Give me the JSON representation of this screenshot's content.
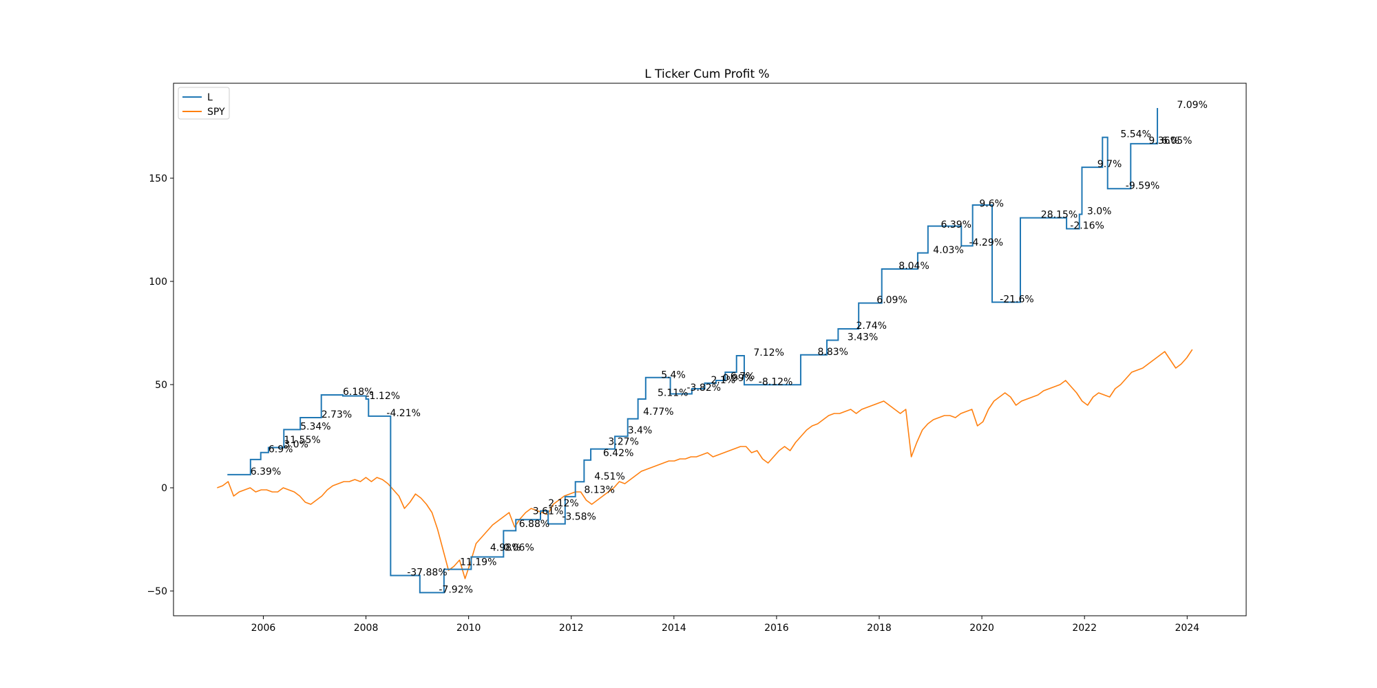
{
  "chart_data": {
    "type": "line",
    "title": "L Ticker Cum Profit %",
    "xlabel": "",
    "ylabel": "",
    "xlim": [
      2004.25,
      2025.15
    ],
    "ylim": [
      -62,
      196
    ],
    "x_ticks": [
      2006,
      2008,
      2010,
      2012,
      2014,
      2016,
      2018,
      2020,
      2022,
      2024
    ],
    "y_ticks": [
      -50,
      0,
      50,
      100,
      150
    ],
    "grid": false,
    "legend_position": "upper-left",
    "colors": {
      "L": "#1f77b4",
      "SPY": "#ff7f0e"
    },
    "series": [
      {
        "name": "L",
        "style": "step",
        "points": [
          [
            2005.3,
            6.39
          ],
          [
            2005.75,
            6.39
          ],
          [
            2005.75,
            13.7
          ],
          [
            2005.95,
            13.7
          ],
          [
            2005.95,
            17.1
          ],
          [
            2006.1,
            17.1
          ],
          [
            2006.1,
            19.5
          ],
          [
            2006.4,
            19.5
          ],
          [
            2006.4,
            28.2
          ],
          [
            2006.72,
            28.2
          ],
          [
            2006.72,
            34.0
          ],
          [
            2007.13,
            34.0
          ],
          [
            2007.13,
            45.0
          ],
          [
            2007.55,
            45.0
          ],
          [
            2007.55,
            44.5
          ],
          [
            2008.0,
            44.5
          ],
          [
            2008.0,
            43.0
          ],
          [
            2008.05,
            43.0
          ],
          [
            2008.05,
            34.7
          ],
          [
            2008.48,
            34.7
          ],
          [
            2008.48,
            -42.5
          ],
          [
            2009.05,
            -42.5
          ],
          [
            2009.05,
            -50.8
          ],
          [
            2009.52,
            -50.8
          ],
          [
            2009.52,
            -39.5
          ],
          [
            2010.05,
            -39.5
          ],
          [
            2010.05,
            -33.5
          ],
          [
            2010.68,
            -33.5
          ],
          [
            2010.68,
            -30.5
          ],
          [
            2010.68,
            -20.8
          ],
          [
            2010.92,
            -20.8
          ],
          [
            2010.92,
            -15.4
          ],
          [
            2011.4,
            -15.4
          ],
          [
            2011.4,
            -11.2
          ],
          [
            2011.55,
            -11.2
          ],
          [
            2011.55,
            -17.5
          ],
          [
            2011.88,
            -17.5
          ],
          [
            2011.88,
            -4.3
          ],
          [
            2012.08,
            -4.3
          ],
          [
            2012.08,
            2.9
          ],
          [
            2012.25,
            2.9
          ],
          [
            2012.25,
            13.4
          ],
          [
            2012.38,
            13.4
          ],
          [
            2012.38,
            18.8
          ],
          [
            2012.85,
            18.8
          ],
          [
            2012.85,
            24.9
          ],
          [
            2013.1,
            24.9
          ],
          [
            2013.1,
            33.4
          ],
          [
            2013.3,
            33.4
          ],
          [
            2013.3,
            43.0
          ],
          [
            2013.45,
            43.0
          ],
          [
            2013.45,
            53.4
          ],
          [
            2013.93,
            53.4
          ],
          [
            2013.93,
            45.5
          ],
          [
            2014.35,
            45.5
          ],
          [
            2014.35,
            48.0
          ],
          [
            2014.6,
            48.0
          ],
          [
            2014.6,
            50.7
          ],
          [
            2014.82,
            50.7
          ],
          [
            2014.82,
            52.0
          ],
          [
            2015.0,
            52.0
          ],
          [
            2015.0,
            56.0
          ],
          [
            2015.22,
            56.0
          ],
          [
            2015.22,
            64.0
          ],
          [
            2015.37,
            64.0
          ],
          [
            2015.37,
            49.9
          ],
          [
            2016.47,
            49.9
          ],
          [
            2016.47,
            64.4
          ],
          [
            2016.98,
            64.4
          ],
          [
            2016.98,
            71.5
          ],
          [
            2017.2,
            71.5
          ],
          [
            2017.2,
            77.0
          ],
          [
            2017.6,
            77.0
          ],
          [
            2017.6,
            89.5
          ],
          [
            2018.05,
            89.5
          ],
          [
            2018.05,
            106.0
          ],
          [
            2018.75,
            106.0
          ],
          [
            2018.75,
            113.8
          ],
          [
            2018.95,
            113.8
          ],
          [
            2018.95,
            126.8
          ],
          [
            2019.6,
            126.8
          ],
          [
            2019.6,
            117.2
          ],
          [
            2019.82,
            117.2
          ],
          [
            2019.82,
            137.0
          ],
          [
            2020.2,
            137.0
          ],
          [
            2020.2,
            89.9
          ],
          [
            2020.75,
            89.9
          ],
          [
            2020.75,
            130.8
          ],
          [
            2021.65,
            130.8
          ],
          [
            2021.65,
            125.5
          ],
          [
            2021.9,
            125.5
          ],
          [
            2021.9,
            132.5
          ],
          [
            2021.95,
            132.5
          ],
          [
            2021.95,
            155.3
          ],
          [
            2022.35,
            155.3
          ],
          [
            2022.35,
            169.8
          ],
          [
            2022.45,
            169.8
          ],
          [
            2022.45,
            144.9
          ],
          [
            2022.9,
            144.9
          ],
          [
            2022.9,
            166.7
          ],
          [
            2023.42,
            166.7
          ],
          [
            2023.42,
            184.0
          ]
        ]
      },
      {
        "name": "SPY",
        "style": "line",
        "x_start": 2005.1,
        "x_end": 2024.1,
        "values": [
          0,
          1,
          3,
          -4,
          -2,
          -1,
          0,
          -2,
          -1,
          -1,
          -2,
          -2,
          0,
          -1,
          -2,
          -4,
          -7,
          -8,
          -6,
          -4,
          -1,
          1,
          2,
          3,
          3,
          4,
          3,
          5,
          3,
          5,
          4,
          2,
          -1,
          -4,
          -10,
          -7,
          -3,
          -5,
          -8,
          -12,
          -20,
          -30,
          -40,
          -38,
          -35,
          -44,
          -36,
          -27,
          -24,
          -21,
          -18,
          -16,
          -14,
          -12,
          -19,
          -15,
          -12,
          -10,
          -11,
          -12,
          -13,
          -8,
          -6,
          -4,
          -3,
          -2,
          -2,
          -6,
          -8,
          -6,
          -4,
          -2,
          0,
          3,
          2,
          4,
          6,
          8,
          9,
          10,
          11,
          12,
          13,
          13,
          14,
          14,
          15,
          15,
          16,
          17,
          15,
          16,
          17,
          18,
          19,
          20,
          20,
          17,
          18,
          14,
          12,
          15,
          18,
          20,
          18,
          22,
          25,
          28,
          30,
          31,
          33,
          35,
          36,
          36,
          37,
          38,
          36,
          38,
          39,
          40,
          41,
          42,
          40,
          38,
          36,
          38,
          15,
          22,
          28,
          31,
          33,
          34,
          35,
          35,
          34,
          36,
          37,
          38,
          30,
          32,
          38,
          42,
          44,
          46,
          44,
          40,
          42,
          43,
          44,
          45,
          47,
          48,
          49,
          50,
          52,
          49,
          46,
          42,
          40,
          44,
          46,
          45,
          44,
          48,
          50,
          53,
          56,
          57,
          58,
          60,
          62,
          64,
          66,
          62,
          58,
          60,
          63,
          67
        ]
      }
    ],
    "annotations": [
      {
        "text": "6.39%",
        "x": 2005.75,
        "y": 6.39
      },
      {
        "text": "6.9%",
        "x": 2006.1,
        "y": 17.1
      },
      {
        "text": "3.0%",
        "x": 2006.4,
        "y": 19.5
      },
      {
        "text": "11.55%",
        "x": 2006.4,
        "y": 21.7
      },
      {
        "text": "5.34%",
        "x": 2006.72,
        "y": 28.2
      },
      {
        "text": "2.73%",
        "x": 2007.13,
        "y": 34.0
      },
      {
        "text": "6.18%",
        "x": 2007.55,
        "y": 45.0
      },
      {
        "text": "-1.12%",
        "x": 2008.0,
        "y": 43.0
      },
      {
        "text": "-4.21%",
        "x": 2008.4,
        "y": 34.7
      },
      {
        "text": "-37.88%",
        "x": 2008.8,
        "y": -42.5
      },
      {
        "text": "-7.92%",
        "x": 2009.42,
        "y": -50.8
      },
      {
        "text": "11.19%",
        "x": 2009.83,
        "y": -37.5
      },
      {
        "text": "4.98%",
        "x": 2010.42,
        "y": -30.5
      },
      {
        "text": "0.06%",
        "x": 2010.68,
        "y": -30.5
      },
      {
        "text": "6.88%",
        "x": 2010.98,
        "y": -19.0
      },
      {
        "text": "3.61%",
        "x": 2011.25,
        "y": -12.8
      },
      {
        "text": "2.12%",
        "x": 2011.55,
        "y": -9.0
      },
      {
        "text": "-3.58%",
        "x": 2011.82,
        "y": -15.5
      },
      {
        "text": "8.13%",
        "x": 2012.25,
        "y": -2.5
      },
      {
        "text": "4.51%",
        "x": 2012.45,
        "y": 4.0
      },
      {
        "text": "6.42%",
        "x": 2012.62,
        "y": 15.4
      },
      {
        "text": "3.27%",
        "x": 2012.72,
        "y": 20.8
      },
      {
        "text": "3.4%",
        "x": 2013.1,
        "y": 26.3
      },
      {
        "text": "4.77%",
        "x": 2013.4,
        "y": 35.4
      },
      {
        "text": "5.11%",
        "x": 2013.68,
        "y": 44.5
      },
      {
        "text": "5.4%",
        "x": 2013.75,
        "y": 53.2
      },
      {
        "text": "-3.82%",
        "x": 2014.25,
        "y": 47.0
      },
      {
        "text": "2.1%",
        "x": 2014.72,
        "y": 50.6
      },
      {
        "text": "0.99%",
        "x": 2014.95,
        "y": 51.7
      },
      {
        "text": "6.7%",
        "x": 2015.1,
        "y": 52.5
      },
      {
        "text": "7.12%",
        "x": 2015.55,
        "y": 64.0
      },
      {
        "text": "-8.12%",
        "x": 2015.65,
        "y": 49.9
      },
      {
        "text": "8.83%",
        "x": 2016.8,
        "y": 64.4
      },
      {
        "text": "3.43%",
        "x": 2017.38,
        "y": 71.5
      },
      {
        "text": "2.74%",
        "x": 2017.55,
        "y": 77.0
      },
      {
        "text": "6.09%",
        "x": 2017.95,
        "y": 89.5
      },
      {
        "text": "8.04%",
        "x": 2018.38,
        "y": 106.0
      },
      {
        "text": "4.03%",
        "x": 2019.05,
        "y": 113.7
      },
      {
        "text": "6.39%",
        "x": 2019.2,
        "y": 126.0
      },
      {
        "text": "-4.29%",
        "x": 2019.75,
        "y": 117.4
      },
      {
        "text": "9.6%",
        "x": 2019.95,
        "y": 136.2
      },
      {
        "text": "-21.6%",
        "x": 2020.35,
        "y": 89.9
      },
      {
        "text": "28.15%",
        "x": 2021.15,
        "y": 130.8
      },
      {
        "text": "-2.16%",
        "x": 2021.72,
        "y": 125.5
      },
      {
        "text": "3.0%",
        "x": 2022.05,
        "y": 132.5
      },
      {
        "text": "9.7%",
        "x": 2022.25,
        "y": 155.3
      },
      {
        "text": "5.54%",
        "x": 2022.7,
        "y": 169.8
      },
      {
        "text": "-9.59%",
        "x": 2022.8,
        "y": 144.9
      },
      {
        "text": "9.36%",
        "x": 2023.25,
        "y": 166.7
      },
      {
        "text": "6.05%",
        "x": 2023.5,
        "y": 166.7
      },
      {
        "text": "7.09%",
        "x": 2023.8,
        "y": 184.0
      }
    ]
  }
}
